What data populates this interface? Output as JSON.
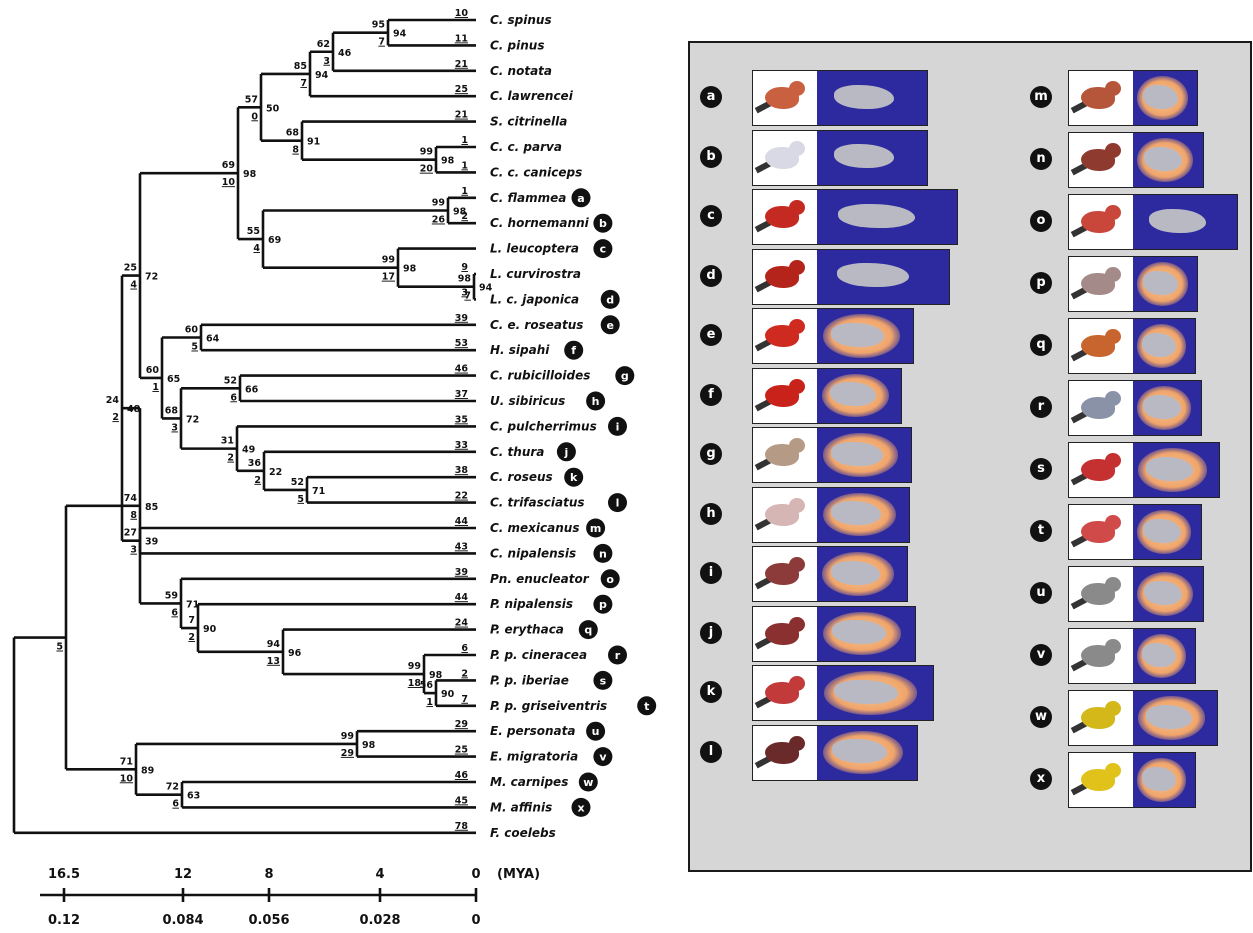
{
  "taxa": [
    {
      "name": "C. spinus",
      "len": "10",
      "badge": ""
    },
    {
      "name": "C. pinus",
      "len": "11",
      "badge": ""
    },
    {
      "name": "C. notata",
      "len": "21",
      "badge": ""
    },
    {
      "name": "C. lawrencei",
      "len": "25",
      "badge": ""
    },
    {
      "name": "S. citrinella",
      "len": "21",
      "badge": ""
    },
    {
      "name": "C. c. parva",
      "len": "1",
      "badge": ""
    },
    {
      "name": "C. c. caniceps",
      "len": "1",
      "badge": ""
    },
    {
      "name": "C. flammea",
      "len": "1",
      "badge": "a"
    },
    {
      "name": "C. hornemanni",
      "len": "2",
      "badge": "b"
    },
    {
      "name": "L. leucoptera",
      "len": "",
      "badge": "c"
    },
    {
      "name": "L. curvirostra",
      "len": "9",
      "badge": ""
    },
    {
      "name": "L. c. japonica",
      "len": "3",
      "badge": "d"
    },
    {
      "name": "C. e. roseatus",
      "len": "39",
      "badge": "e"
    },
    {
      "name": "H. sipahi",
      "len": "53",
      "badge": "f"
    },
    {
      "name": "C. rubicilloides",
      "len": "46",
      "badge": "g"
    },
    {
      "name": "U. sibiricus",
      "len": "37",
      "badge": "h"
    },
    {
      "name": "C. pulcherrimus",
      "len": "35",
      "badge": "i"
    },
    {
      "name": "C. thura",
      "len": "33",
      "badge": "j"
    },
    {
      "name": "C. roseus",
      "len": "38",
      "badge": "k"
    },
    {
      "name": "C. trifasciatus",
      "len": "22",
      "badge": "l"
    },
    {
      "name": "C. mexicanus",
      "len": "44",
      "badge": "m"
    },
    {
      "name": "C. nipalensis",
      "len": "43",
      "badge": "n"
    },
    {
      "name": "Pn. enucleator",
      "len": "39",
      "badge": "o"
    },
    {
      "name": "P. nipalensis",
      "len": "44",
      "badge": "p"
    },
    {
      "name": "P. erythaca",
      "len": "24",
      "badge": "q"
    },
    {
      "name": "P. p. cineracea",
      "len": "6",
      "badge": "r"
    },
    {
      "name": "P. p. iberiae",
      "len": "2",
      "badge": "s"
    },
    {
      "name": "P. p. griseiventris",
      "len": "7",
      "badge": "t"
    },
    {
      "name": "E. personata",
      "len": "29",
      "badge": "u"
    },
    {
      "name": "E. migratoria",
      "len": "25",
      "badge": "v"
    },
    {
      "name": "M. carnipes",
      "len": "46",
      "badge": "w"
    },
    {
      "name": "M. affinis",
      "len": "45",
      "badge": "x"
    },
    {
      "name": "F. coelebs",
      "len": "78",
      "badge": ""
    }
  ],
  "nodes": [
    {
      "top": "95",
      "bottom": "7",
      "right": "94"
    },
    {
      "top": "62",
      "bottom": "3",
      "right": "46"
    },
    {
      "top": "85",
      "bottom": "7",
      "right": "94"
    },
    {
      "top": "99",
      "bottom": "20",
      "right": "98"
    },
    {
      "top": "68",
      "bottom": "8",
      "right": "91"
    },
    {
      "top": "57",
      "bottom": "0",
      "right": "50"
    },
    {
      "top": "99",
      "bottom": "26",
      "right": "98"
    },
    {
      "top": "98",
      "bottom": "7",
      "right": "94"
    },
    {
      "top": "99",
      "bottom": "17",
      "right": "98"
    },
    {
      "top": "55",
      "bottom": "4",
      "right": "69"
    },
    {
      "top": "69",
      "bottom": "10",
      "right": "98"
    },
    {
      "top": "60",
      "bottom": "5",
      "right": "64"
    },
    {
      "top": "52",
      "bottom": "6",
      "right": "66"
    },
    {
      "top": "52",
      "bottom": "5",
      "right": "71"
    },
    {
      "top": "36",
      "bottom": "2",
      "right": "22"
    },
    {
      "top": "31",
      "bottom": "2",
      "right": "49"
    },
    {
      "top": "68",
      "bottom": "3",
      "right": "72"
    },
    {
      "top": "60",
      "bottom": "1",
      "right": "65"
    },
    {
      "top": "25",
      "bottom": "4",
      "right": "72"
    },
    {
      "top": "27",
      "bottom": "3",
      "right": "39"
    },
    {
      "top": "24",
      "bottom": "2",
      "right": "48"
    },
    {
      "top": "56",
      "bottom": "1",
      "right": "90"
    },
    {
      "top": "99",
      "bottom": "18",
      "right": "98"
    },
    {
      "top": "94",
      "bottom": "13",
      "right": "96"
    },
    {
      "top": "7",
      "bottom": "2",
      "right": "90"
    },
    {
      "top": "59",
      "bottom": "6",
      "right": "71"
    },
    {
      "top": "74",
      "bottom": "8",
      "right": "85"
    },
    {
      "top": "99",
      "bottom": "29",
      "right": "98"
    },
    {
      "top": "72",
      "bottom": "6",
      "right": "63"
    },
    {
      "top": "71",
      "bottom": "10",
      "right": "89"
    },
    {
      "top": "",
      "bottom": "5",
      "right": ""
    }
  ],
  "axis": {
    "mya_ticks": [
      "16.5",
      "12",
      "8",
      "4",
      "0"
    ],
    "mya_unit": "(MYA)",
    "dist_ticks": [
      "0.12",
      "0.084",
      "0.056",
      "0.028",
      "0"
    ]
  },
  "panel": {
    "left": [
      {
        "letter": "a",
        "bird": "#c9603f",
        "map": "holarctic"
      },
      {
        "letter": "b",
        "bird": "#d9d9e6",
        "map": "holarctic"
      },
      {
        "letter": "c",
        "bird": "#c42a22",
        "map": "holarctic"
      },
      {
        "letter": "d",
        "bird": "#b5241b",
        "map": "holarctic"
      },
      {
        "letter": "e",
        "bird": "#cf2a1f",
        "map": "palearctic"
      },
      {
        "letter": "f",
        "bird": "#c8221a",
        "map": "asia"
      },
      {
        "letter": "g",
        "bird": "#b59a85",
        "map": "asia"
      },
      {
        "letter": "h",
        "bird": "#d6b5b5",
        "map": "palearctic"
      },
      {
        "letter": "i",
        "bird": "#8c3a3a",
        "map": "asia"
      },
      {
        "letter": "j",
        "bird": "#8a3030",
        "map": "asia"
      },
      {
        "letter": "k",
        "bird": "#c23a3a",
        "map": "palearctic"
      },
      {
        "letter": "l",
        "bird": "#6a2a2a",
        "map": "asia"
      }
    ],
    "right": [
      {
        "letter": "m",
        "bird": "#b5553a",
        "map": "america"
      },
      {
        "letter": "n",
        "bird": "#8e3a2e",
        "map": "asia"
      },
      {
        "letter": "o",
        "bird": "#c9473a",
        "map": "holarctic"
      },
      {
        "letter": "p",
        "bird": "#a58a8a",
        "map": "asia"
      },
      {
        "letter": "q",
        "bird": "#c8652e",
        "map": "asia"
      },
      {
        "letter": "r",
        "bird": "#8a92a8",
        "map": "asia"
      },
      {
        "letter": "s",
        "bird": "#c53030",
        "map": "palearctic"
      },
      {
        "letter": "t",
        "bird": "#d04a4a",
        "map": "palearctic"
      },
      {
        "letter": "u",
        "bird": "#8a8a8a",
        "map": "asia"
      },
      {
        "letter": "v",
        "bird": "#8a8a8a",
        "map": "asia"
      },
      {
        "letter": "w",
        "bird": "#d4b81a",
        "map": "asia"
      },
      {
        "letter": "x",
        "bird": "#e0c21a",
        "map": "asia"
      }
    ]
  },
  "colors": {
    "panel_bg": "#d6d6d6",
    "map_ocean": "#2d2aa0",
    "map_glow": "#f0a56a",
    "map_land": "#b9b9c4"
  }
}
